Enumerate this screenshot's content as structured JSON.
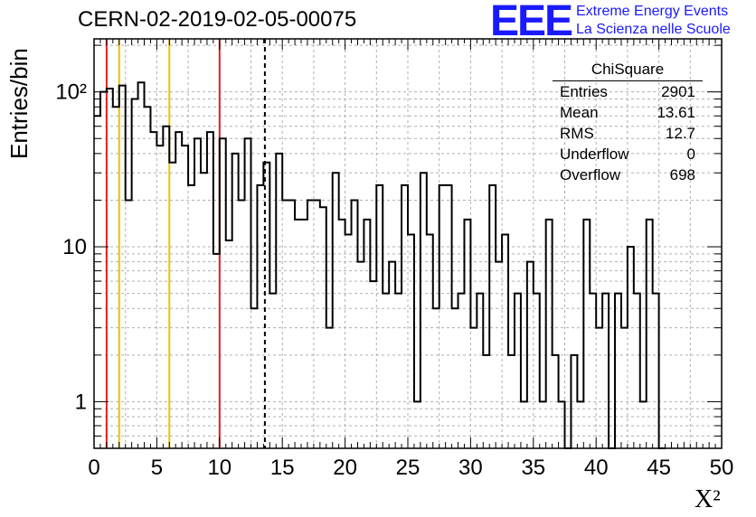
{
  "title": "CERN-02-2019-02-05-00075",
  "logo": {
    "mark": "EEE",
    "line1": "Extreme Energy Events",
    "line2": "La Scienza nelle Scuole",
    "color": "#1a1aff"
  },
  "stats": {
    "header": "ChiSquare",
    "rows": [
      {
        "label": "Entries",
        "value": "2901"
      },
      {
        "label": "Mean",
        "value": "13.61"
      },
      {
        "label": "RMS",
        "value": "12.7"
      },
      {
        "label": "Underflow",
        "value": "0"
      },
      {
        "label": "Overflow",
        "value": "698"
      }
    ]
  },
  "chart_data": {
    "type": "histogram",
    "title": "CERN-02-2019-02-05-00075",
    "xlabel": "X²",
    "ylabel": "Entries/bin",
    "xlim": [
      0,
      50
    ],
    "ylim": [
      0.5,
      220
    ],
    "yscale": "log",
    "grid": true,
    "bin_width": 0.5,
    "x_ticks": [
      "0",
      "5",
      "10",
      "15",
      "20",
      "25",
      "30",
      "35",
      "40",
      "45",
      "50"
    ],
    "y_ticks": [
      "1",
      "10",
      "10²"
    ],
    "values": [
      70,
      100,
      105,
      80,
      110,
      20,
      90,
      115,
      80,
      55,
      45,
      60,
      35,
      55,
      45,
      25,
      50,
      30,
      55,
      9,
      50,
      11,
      40,
      20,
      50,
      4,
      25,
      35,
      5,
      40,
      20,
      20,
      15,
      15,
      20,
      20,
      18,
      3,
      30,
      15,
      12,
      20,
      8,
      15,
      6,
      25,
      5,
      8,
      5,
      25,
      12,
      1,
      30,
      12,
      4,
      25,
      25,
      4,
      5,
      15,
      3,
      5,
      2,
      25,
      8,
      12,
      2,
      5,
      1,
      8,
      5,
      1,
      15,
      2,
      1,
      0.5,
      2,
      1,
      15,
      5,
      3,
      5,
      0.5,
      5,
      3,
      10,
      5,
      1,
      15,
      5,
      0.5
    ],
    "markers": [
      {
        "x": 1,
        "color": "#e02020"
      },
      {
        "x": 2,
        "color": "#f0c000"
      },
      {
        "x": 6,
        "color": "#f0c000"
      },
      {
        "x": 10,
        "color": "#e02020"
      },
      {
        "x": 13.61,
        "color": "#000000",
        "style": "dashed"
      }
    ]
  }
}
